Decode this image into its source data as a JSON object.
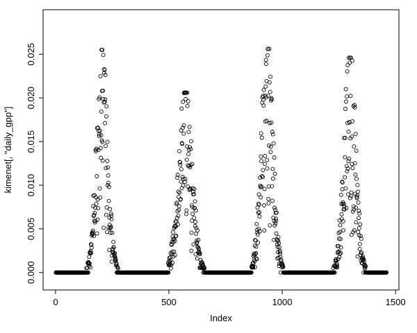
{
  "chart_data": {
    "type": "scatter",
    "title": "",
    "xlabel": "Index",
    "ylabel": "kimenet[, \"daily_gpp\"]",
    "marker": "open-circle",
    "point_color": "#000000",
    "background_color": "#ffffff",
    "grid": false,
    "legend": false,
    "n_points": 1460,
    "xlim": [
      -55,
      1515
    ],
    "ylim": [
      -0.002,
      0.0301
    ],
    "x_ticks": [
      0,
      500,
      1000,
      1500
    ],
    "x_tick_labels": [
      "0",
      "500",
      "1000",
      "1500"
    ],
    "y_ticks": [
      0,
      0.005,
      0.01,
      0.015,
      0.02,
      0.025
    ],
    "y_tick_labels": [
      "0.000",
      "0.005",
      "0.010",
      "0.015",
      "0.020",
      "0.025"
    ],
    "baseline_value": 0,
    "seed": 42,
    "seasons": [
      {
        "start": 128,
        "center": 205,
        "end": 278,
        "amplitude": 0.0255,
        "sigma": 25
      },
      {
        "start": 495,
        "center": 572,
        "end": 672,
        "amplitude": 0.0206,
        "sigma": 31
      },
      {
        "start": 858,
        "center": 933,
        "end": 1010,
        "amplitude": 0.0256,
        "sigma": 26
      },
      {
        "start": 1225,
        "center": 1298,
        "end": 1382,
        "amplitude": 0.0246,
        "sigma": 26
      }
    ]
  }
}
